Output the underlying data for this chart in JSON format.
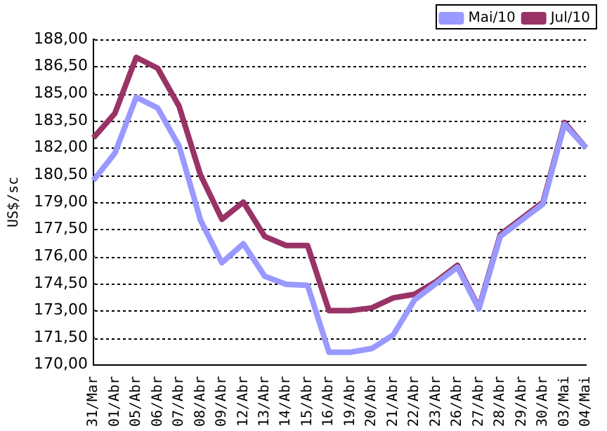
{
  "chart_data": {
    "type": "line",
    "categories": [
      "31/Mar",
      "01/Abr",
      "05/Abr",
      "06/Abr",
      "07/Abr",
      "08/Abr",
      "09/Abr",
      "12/Abr",
      "13/Abr",
      "14/Abr",
      "15/Abr",
      "16/Abr",
      "19/Abr",
      "20/Abr",
      "21/Abr",
      "22/Abr",
      "23/Abr",
      "26/Abr",
      "27/Abr",
      "28/Abr",
      "29/Abr",
      "30/Abr",
      "03/Mai",
      "04/Mai"
    ],
    "series": [
      {
        "name": "Mai/10",
        "color": "#9999ff",
        "values": [
          180.2,
          181.7,
          184.8,
          184.2,
          182.1,
          178.0,
          175.65,
          176.7,
          174.9,
          174.45,
          174.4,
          170.7,
          170.7,
          170.9,
          171.65,
          173.6,
          174.5,
          175.4,
          173.1,
          177.1,
          178.0,
          178.9,
          183.3,
          182.0
        ]
      },
      {
        "name": "Jul/10",
        "color": "#993366",
        "values": [
          182.55,
          183.9,
          187.0,
          186.4,
          184.3,
          180.5,
          178.05,
          179.0,
          177.1,
          176.6,
          176.6,
          173.0,
          173.0,
          173.15,
          173.7,
          173.9,
          174.6,
          175.5,
          173.15,
          177.2,
          178.1,
          179.0,
          183.4,
          182.0
        ]
      }
    ],
    "ylabel": "US$/sc",
    "ylim": [
      170,
      188
    ],
    "yticks": [
      {
        "value": 170,
        "label": "170,00"
      },
      {
        "value": 171.5,
        "label": "171,50"
      },
      {
        "value": 173,
        "label": "173,00"
      },
      {
        "value": 174.5,
        "label": "174,50"
      },
      {
        "value": 176,
        "label": "176,00"
      },
      {
        "value": 177.5,
        "label": "177,50"
      },
      {
        "value": 179,
        "label": "179,00"
      },
      {
        "value": 180.5,
        "label": "180,50"
      },
      {
        "value": 182,
        "label": "182,00"
      },
      {
        "value": 183.5,
        "label": "183,50"
      },
      {
        "value": 185,
        "label": "185,00"
      },
      {
        "value": 186.5,
        "label": "186,50"
      },
      {
        "value": 188,
        "label": "188,00"
      }
    ],
    "grid": "y",
    "legend": "top",
    "marker": "none",
    "line_style": "solid"
  }
}
